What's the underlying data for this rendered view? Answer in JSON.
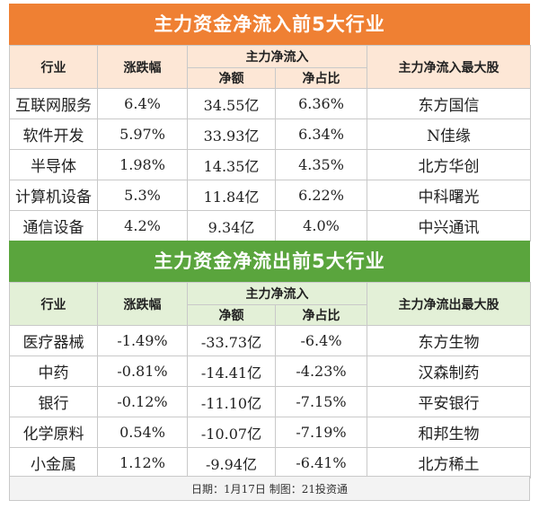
{
  "inflow": {
    "title": "主力资金净流入前5大行业",
    "headers": {
      "sector": "行业",
      "change": "涨跌幅",
      "net_group": "主力净流入",
      "net_amount": "净额",
      "net_ratio": "净占比",
      "top_stock": "主力净流入最大股"
    },
    "rows": [
      {
        "sector": "互联网服务",
        "change": "6.4%",
        "net_amount": "34.55亿",
        "net_ratio": "6.36%",
        "top_stock": "东方国信"
      },
      {
        "sector": "软件开发",
        "change": "5.97%",
        "net_amount": "33.93亿",
        "net_ratio": "6.34%",
        "top_stock": "N佳缘"
      },
      {
        "sector": "半导体",
        "change": "1.98%",
        "net_amount": "14.35亿",
        "net_ratio": "4.35%",
        "top_stock": "北方华创"
      },
      {
        "sector": "计算机设备",
        "change": "5.3%",
        "net_amount": "11.84亿",
        "net_ratio": "6.22%",
        "top_stock": "中科曙光"
      },
      {
        "sector": "通信设备",
        "change": "4.2%",
        "net_amount": "9.34亿",
        "net_ratio": "4.0%",
        "top_stock": "中兴通讯"
      }
    ]
  },
  "outflow": {
    "title": "主力资金净流出前5大行业",
    "headers": {
      "sector": "行业",
      "change": "涨跌幅",
      "net_group": "主力净流入",
      "net_amount": "净额",
      "net_ratio": "净占比",
      "top_stock": "主力净流出最大股"
    },
    "rows": [
      {
        "sector": "医疗器械",
        "change": "-1.49%",
        "net_amount": "-33.73亿",
        "net_ratio": "-6.4%",
        "top_stock": "东方生物"
      },
      {
        "sector": "中药",
        "change": "-0.81%",
        "net_amount": "-14.41亿",
        "net_ratio": "-4.23%",
        "top_stock": "汉森制药"
      },
      {
        "sector": "银行",
        "change": "-0.12%",
        "net_amount": "-11.10亿",
        "net_ratio": "-7.15%",
        "top_stock": "平安银行"
      },
      {
        "sector": "化学原料",
        "change": "0.54%",
        "net_amount": "-10.07亿",
        "net_ratio": "-7.19%",
        "top_stock": "和邦生物"
      },
      {
        "sector": "小金属",
        "change": "1.12%",
        "net_amount": "-9.94亿",
        "net_ratio": "-6.41%",
        "top_stock": "北方稀土"
      }
    ]
  },
  "footer": "日期：1月17日  制图：21投资通",
  "colors": {
    "inflow_banner": "#ef8033",
    "outflow_banner": "#5aa53d",
    "inflow_header_bg": "#fde7d6",
    "outflow_header_bg": "#e3f0d7"
  }
}
